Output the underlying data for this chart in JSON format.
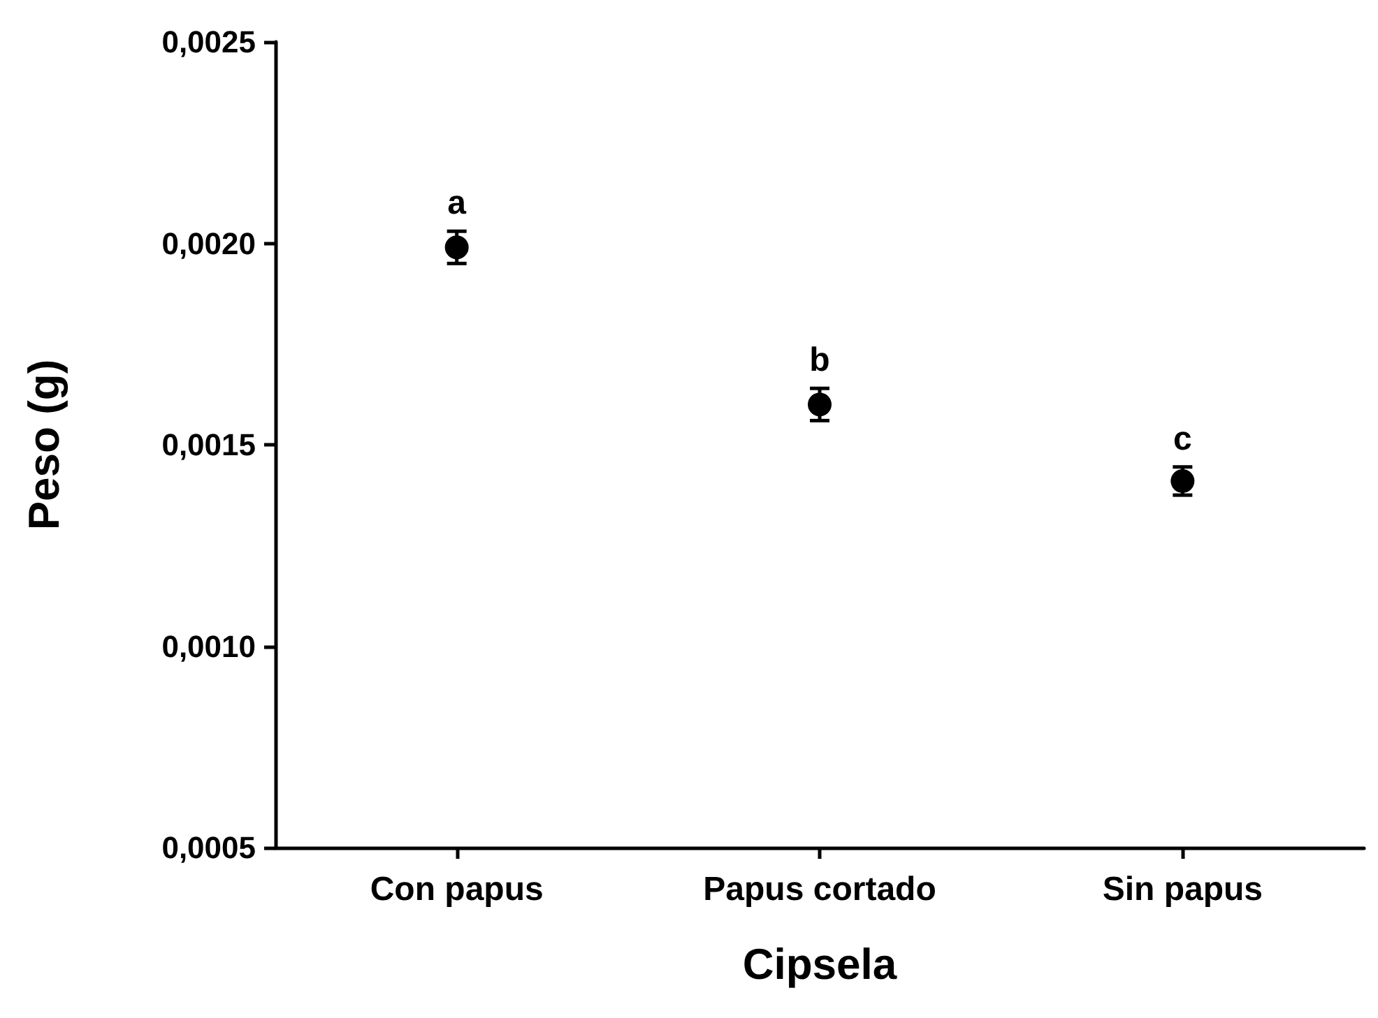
{
  "chart_data": {
    "type": "scatter",
    "xlabel": "Cipsela",
    "ylabel": "Peso (g)",
    "categories": [
      "Con papus",
      "Papus cortado",
      "Sin papus"
    ],
    "series": [
      {
        "color": "#000000",
        "values": [
          0.00199,
          0.0016,
          0.00141
        ],
        "errors": [
          4e-05,
          4e-05,
          3.5e-05
        ]
      }
    ],
    "ylim": [
      0.0005,
      0.0025
    ],
    "yticks": [
      {
        "value": 0.0005,
        "label": "0,0005"
      },
      {
        "value": 0.001,
        "label": "0,0010"
      },
      {
        "value": 0.0015,
        "label": "0,0015"
      },
      {
        "value": 0.002,
        "label": "0,0020"
      },
      {
        "value": 0.0025,
        "label": "0,0025"
      }
    ],
    "annotations": [
      "a",
      "b",
      "c"
    ],
    "marker": "circle",
    "grid": false
  }
}
